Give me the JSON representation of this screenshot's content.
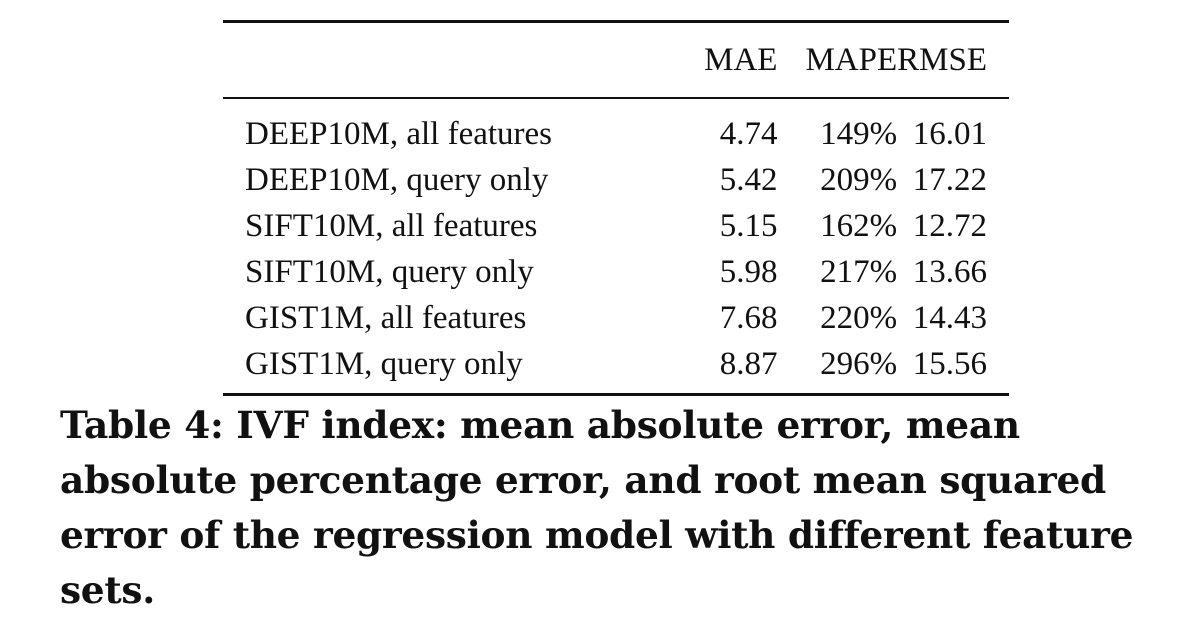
{
  "table": {
    "headers": [
      "",
      "MAE",
      "MAPE",
      "RMSE"
    ],
    "rows": [
      [
        "DEEP10M, all features",
        "4.74",
        "149%",
        "16.01"
      ],
      [
        "DEEP10M, query only",
        "5.42",
        "209%",
        "17.22"
      ],
      [
        "SIFT10M, all features",
        "5.15",
        "162%",
        "12.72"
      ],
      [
        "SIFT10M, query only",
        "5.98",
        "217%",
        "13.66"
      ],
      [
        "GIST1M, all features",
        "7.68",
        "220%",
        "14.43"
      ],
      [
        "GIST1M, query only",
        "8.87",
        "296%",
        "15.56"
      ]
    ]
  },
  "caption": "Table 4: IVF index: mean absolute error, mean absolute percentage error, and root mean squared error of the regression model with different feature sets."
}
